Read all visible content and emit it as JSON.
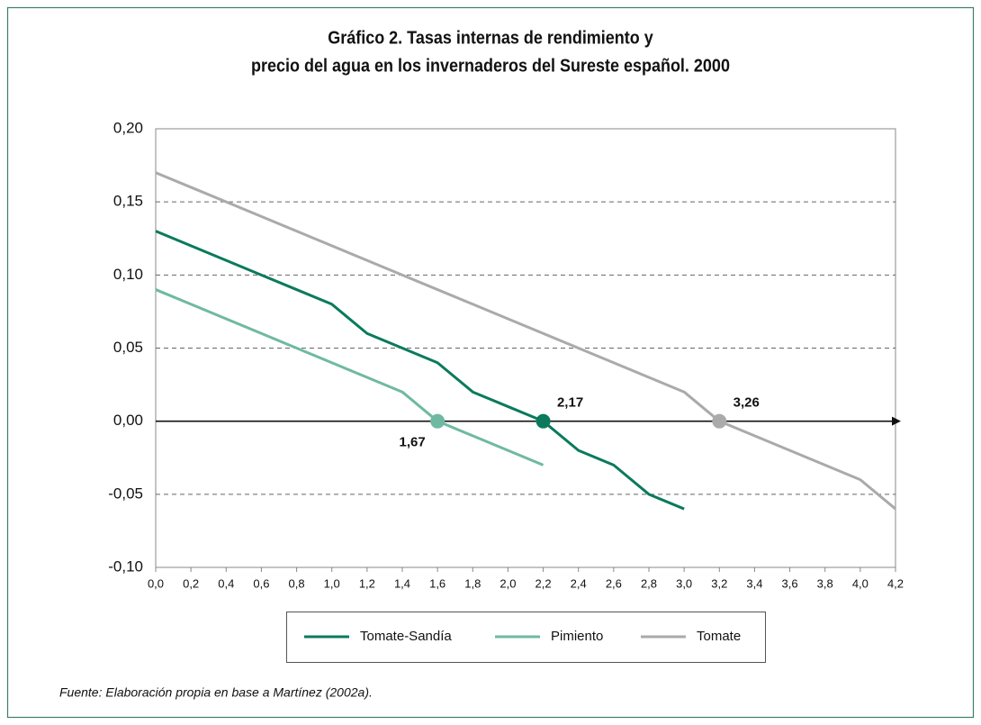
{
  "chart_data": {
    "type": "line",
    "title": [
      "Gráfico 2. Tasas internas de rendimiento y",
      "precio del agua en los invernaderos del Sureste español. 2000"
    ],
    "source": "Fuente: Elaboración propia en base a Martínez (2002a).",
    "x": [
      0,
      0.2,
      0.4,
      0.6,
      0.8,
      1.0,
      1.2,
      1.4,
      1.6,
      1.8,
      2.0,
      2.2,
      2.4,
      2.6,
      2.8,
      3.0,
      3.2,
      3.4,
      3.6,
      3.8,
      4.0,
      4.2
    ],
    "series": [
      {
        "name": "Tomate-Sandía",
        "color": "#0b7a5c",
        "values": [
          0.13,
          0.12,
          0.11,
          0.1,
          0.09,
          0.08,
          0.06,
          0.05,
          0.04,
          0.02,
          0.01,
          0.0,
          -0.02,
          -0.03,
          -0.05,
          -0.06,
          null,
          null,
          null,
          null,
          null,
          null
        ]
      },
      {
        "name": "Pimiento",
        "color": "#6fb9a2",
        "values": [
          0.09,
          0.08,
          0.07,
          0.06,
          0.05,
          0.04,
          0.03,
          0.02,
          0.0,
          -0.01,
          -0.02,
          -0.03,
          null,
          null,
          null,
          null,
          null,
          null,
          null,
          null,
          null,
          null
        ]
      },
      {
        "name": "Tomate",
        "color": "#aaaaaa",
        "values": [
          0.17,
          0.16,
          0.15,
          0.14,
          0.13,
          0.12,
          0.11,
          0.1,
          0.09,
          0.08,
          0.07,
          0.06,
          0.05,
          0.04,
          0.03,
          0.02,
          0.0,
          -0.01,
          -0.02,
          -0.03,
          -0.04,
          -0.06
        ]
      }
    ],
    "annotations": [
      {
        "text": "2,17",
        "x": 2.2,
        "y": 0,
        "series": 0
      },
      {
        "text": "1,67",
        "x": 1.6,
        "y": 0,
        "series": 1
      },
      {
        "text": "3,26",
        "x": 3.2,
        "y": 0,
        "series": 2
      }
    ],
    "xlim": [
      0,
      4.2
    ],
    "xticks": [
      {
        "value": 0,
        "label": "0,0"
      },
      {
        "value": 0.2,
        "label": "0,2"
      },
      {
        "value": 0.4,
        "label": "0,4"
      },
      {
        "value": 0.6,
        "label": "0,6"
      },
      {
        "value": 0.8,
        "label": "0,8"
      },
      {
        "value": 1.0,
        "label": "1,0"
      },
      {
        "value": 1.2,
        "label": "1,2"
      },
      {
        "value": 1.4,
        "label": "1,4"
      },
      {
        "value": 1.6,
        "label": "1,6"
      },
      {
        "value": 1.8,
        "label": "1,8"
      },
      {
        "value": 2.0,
        "label": "2,0"
      },
      {
        "value": 2.2,
        "label": "2,2"
      },
      {
        "value": 2.4,
        "label": "2,4"
      },
      {
        "value": 2.6,
        "label": "2,6"
      },
      {
        "value": 2.8,
        "label": "2,8"
      },
      {
        "value": 3.0,
        "label": "3,0"
      },
      {
        "value": 3.2,
        "label": "3,2"
      },
      {
        "value": 3.4,
        "label": "3,4"
      },
      {
        "value": 3.6,
        "label": "3,6"
      },
      {
        "value": 3.8,
        "label": "3,8"
      },
      {
        "value": 4.0,
        "label": "4,0"
      },
      {
        "value": 4.2,
        "label": "4,2"
      }
    ],
    "ylim": [
      -0.1,
      0.2
    ],
    "yticks": [
      {
        "value": -0.1,
        "label": "-0,10"
      },
      {
        "value": -0.05,
        "label": "-0,05"
      },
      {
        "value": 0,
        "label": "0,00"
      },
      {
        "value": 0.05,
        "label": "0,05"
      },
      {
        "value": 0.1,
        "label": "0,10"
      },
      {
        "value": 0.15,
        "label": "0,15"
      },
      {
        "value": 0.2,
        "label": "0,20"
      }
    ],
    "grid": true
  }
}
